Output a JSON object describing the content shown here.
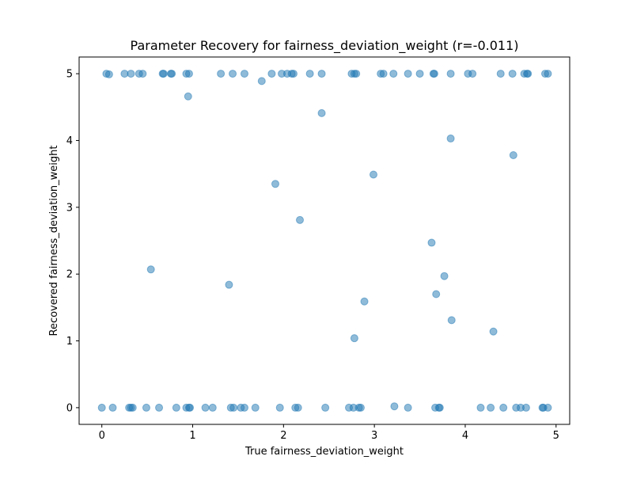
{
  "chart_data": {
    "type": "scatter",
    "title": "Parameter Recovery for fairness_deviation_weight (r=-0.011)",
    "xlabel": "True fairness_deviation_weight",
    "ylabel": "Recovered fairness_deviation_weight",
    "xlim": [
      -0.25,
      5.15
    ],
    "ylim": [
      -0.25,
      5.25
    ],
    "xticks": [
      0,
      1,
      2,
      3,
      4,
      5
    ],
    "yticks": [
      0,
      1,
      2,
      3,
      4,
      5
    ],
    "grid": false,
    "color": "#1f77b4",
    "points": [
      [
        0.05,
        5.0
      ],
      [
        0.08,
        4.99
      ],
      [
        0.25,
        5.0
      ],
      [
        0.32,
        5.0
      ],
      [
        0.41,
        5.0
      ],
      [
        0.45,
        5.0
      ],
      [
        0.67,
        5.0
      ],
      [
        0.68,
        5.0
      ],
      [
        0.76,
        5.0
      ],
      [
        0.77,
        5.0
      ],
      [
        0.93,
        5.0
      ],
      [
        0.96,
        5.0
      ],
      [
        0.95,
        4.66
      ],
      [
        1.31,
        5.0
      ],
      [
        1.44,
        5.0
      ],
      [
        1.57,
        5.0
      ],
      [
        1.76,
        4.89
      ],
      [
        1.87,
        5.0
      ],
      [
        1.98,
        5.0
      ],
      [
        2.04,
        5.0
      ],
      [
        2.09,
        5.0
      ],
      [
        2.11,
        5.0
      ],
      [
        2.29,
        5.0
      ],
      [
        2.42,
        5.0
      ],
      [
        2.42,
        4.41
      ],
      [
        2.75,
        5.0
      ],
      [
        2.78,
        5.0
      ],
      [
        2.8,
        5.0
      ],
      [
        3.07,
        5.0
      ],
      [
        3.1,
        5.0
      ],
      [
        3.21,
        5.0
      ],
      [
        3.37,
        5.0
      ],
      [
        3.5,
        5.0
      ],
      [
        3.65,
        5.0
      ],
      [
        3.66,
        5.0
      ],
      [
        3.84,
        5.0
      ],
      [
        4.03,
        5.0
      ],
      [
        4.08,
        5.0
      ],
      [
        4.39,
        5.0
      ],
      [
        4.52,
        5.0
      ],
      [
        4.65,
        5.0
      ],
      [
        4.68,
        5.0
      ],
      [
        4.69,
        5.0
      ],
      [
        4.88,
        5.0
      ],
      [
        4.91,
        5.0
      ],
      [
        3.84,
        4.03
      ],
      [
        4.53,
        3.78
      ],
      [
        2.99,
        3.49
      ],
      [
        1.91,
        3.35
      ],
      [
        2.18,
        2.81
      ],
      [
        3.63,
        2.47
      ],
      [
        0.54,
        2.07
      ],
      [
        3.77,
        1.97
      ],
      [
        1.4,
        1.84
      ],
      [
        3.68,
        1.7
      ],
      [
        2.89,
        1.59
      ],
      [
        3.85,
        1.31
      ],
      [
        4.31,
        1.14
      ],
      [
        2.78,
        1.04
      ],
      [
        0.0,
        0.0
      ],
      [
        0.12,
        0.0
      ],
      [
        0.3,
        0.0
      ],
      [
        0.32,
        0.0
      ],
      [
        0.34,
        0.0
      ],
      [
        0.49,
        0.0
      ],
      [
        0.63,
        0.0
      ],
      [
        0.82,
        0.0
      ],
      [
        0.93,
        0.0
      ],
      [
        0.96,
        0.0
      ],
      [
        0.97,
        0.0
      ],
      [
        1.14,
        0.0
      ],
      [
        1.22,
        0.0
      ],
      [
        1.42,
        0.0
      ],
      [
        1.45,
        0.0
      ],
      [
        1.53,
        0.0
      ],
      [
        1.57,
        0.0
      ],
      [
        1.69,
        0.0
      ],
      [
        1.96,
        0.0
      ],
      [
        2.13,
        0.0
      ],
      [
        2.16,
        0.0
      ],
      [
        2.46,
        0.0
      ],
      [
        2.72,
        0.0
      ],
      [
        2.77,
        0.0
      ],
      [
        2.83,
        0.0
      ],
      [
        2.85,
        0.0
      ],
      [
        3.22,
        0.02
      ],
      [
        3.37,
        0.0
      ],
      [
        3.67,
        0.0
      ],
      [
        3.71,
        0.0
      ],
      [
        3.72,
        0.0
      ],
      [
        4.17,
        0.0
      ],
      [
        4.28,
        0.0
      ],
      [
        4.42,
        0.0
      ],
      [
        4.56,
        0.0
      ],
      [
        4.61,
        0.0
      ],
      [
        4.67,
        0.0
      ],
      [
        4.85,
        0.0
      ],
      [
        4.86,
        0.0
      ],
      [
        4.91,
        0.0
      ]
    ]
  }
}
